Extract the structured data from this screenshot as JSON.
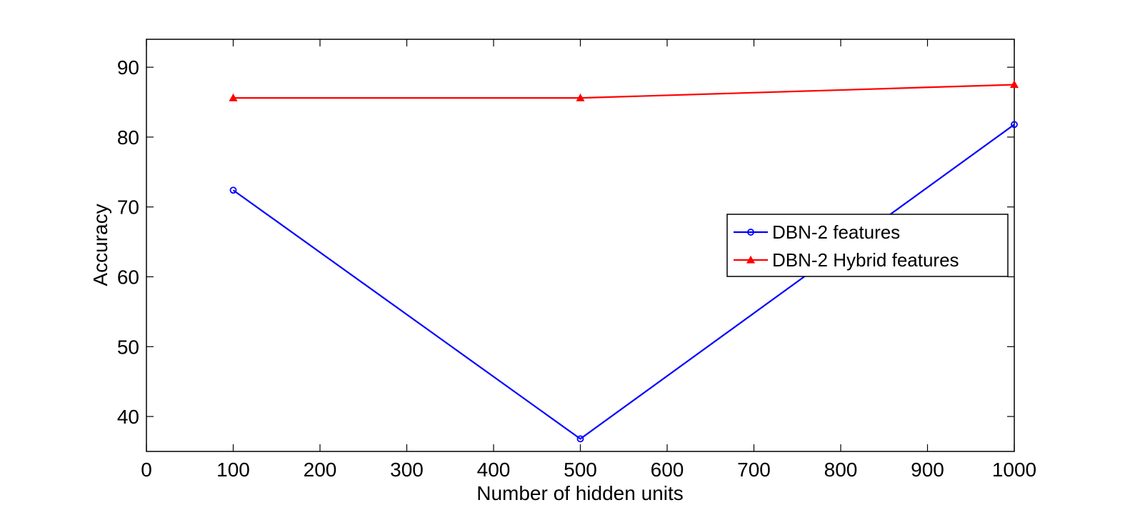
{
  "chart_data": {
    "type": "line",
    "title": "",
    "xlabel": "Number of hidden units",
    "ylabel": "Accuracy",
    "xlim": [
      0,
      1000
    ],
    "ylim": [
      35,
      94
    ],
    "xticks": [
      0,
      100,
      200,
      300,
      400,
      500,
      600,
      700,
      800,
      900,
      1000
    ],
    "yticks": [
      40,
      50,
      60,
      70,
      80,
      90
    ],
    "grid": false,
    "legend_position": "right",
    "series": [
      {
        "name": "DBN-2 features",
        "color": "#0000ff",
        "marker": "circle",
        "x": [
          100,
          500,
          1000
        ],
        "y": [
          72.4,
          36.8,
          81.8
        ]
      },
      {
        "name": "DBN-2 Hybrid features",
        "color": "#ff0000",
        "marker": "triangle",
        "x": [
          100,
          500,
          1000
        ],
        "y": [
          85.6,
          85.6,
          87.5
        ]
      }
    ]
  }
}
